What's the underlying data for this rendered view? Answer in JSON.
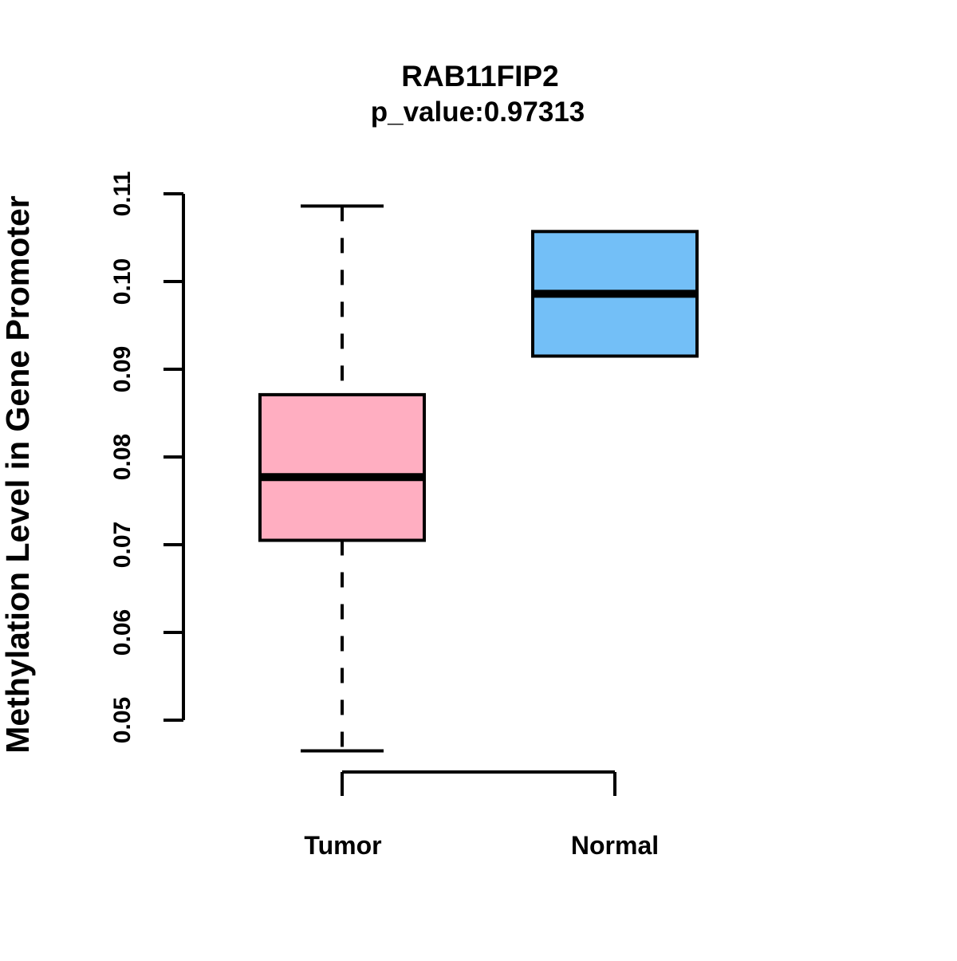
{
  "chart_data": {
    "type": "boxplot",
    "title": "RAB11FIP2",
    "subtitle": "p_value:0.97313",
    "ylabel": "Methylation Level in Gene Promoter",
    "xlabel": "",
    "ylim": [
      0.05,
      0.11
    ],
    "yticks": [
      0.05,
      0.06,
      0.07,
      0.08,
      0.09,
      0.1,
      0.11
    ],
    "ytick_labels": [
      "0.05",
      "0.06",
      "0.07",
      "0.08",
      "0.09",
      "0.10",
      "0.11"
    ],
    "categories": [
      "Tumor",
      "Normal"
    ],
    "grid": false,
    "legend": "none",
    "colors": {
      "tumor": "#FFAEC1",
      "normal": "#73BFF7",
      "stroke": "#000000"
    },
    "series": [
      {
        "name": "Tumor",
        "color": "#FFAEC1",
        "whisker_low": 0.0465,
        "q1": 0.0705,
        "median": 0.0777,
        "q3": 0.0871,
        "whisker_high": 0.1086
      },
      {
        "name": "Normal",
        "color": "#73BFF7",
        "whisker_low": null,
        "q1": 0.0915,
        "median": 0.0986,
        "q3": 0.1057,
        "whisker_high": null
      }
    ]
  }
}
